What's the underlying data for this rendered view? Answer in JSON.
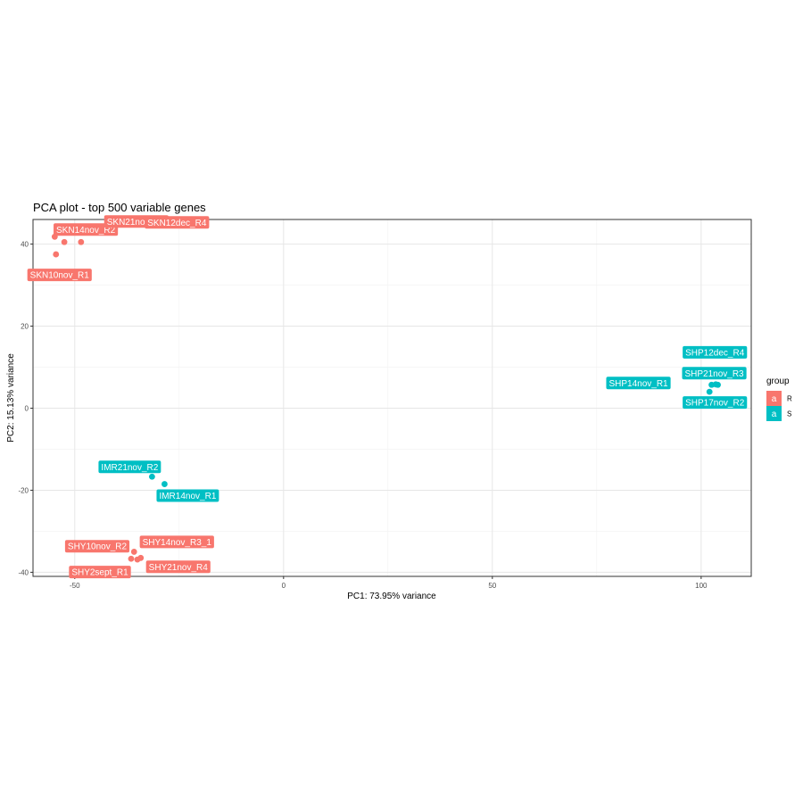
{
  "chart_data": {
    "type": "scatter",
    "title": "PCA plot - top 500 variable genes",
    "xlabel": "PC1: 73.95% variance",
    "ylabel": "PC2: 15.13% variance",
    "xlim": [
      -60,
      112
    ],
    "ylim": [
      -41,
      46
    ],
    "x_ticks": [
      -50,
      0,
      50,
      100
    ],
    "x_tick_labels": [
      "-50",
      "0",
      "50",
      "100"
    ],
    "y_ticks": [
      -40,
      -20,
      0,
      20,
      40
    ],
    "y_tick_labels": [
      "-40",
      "-20",
      "0",
      "20",
      "40"
    ],
    "grid": true,
    "legend": {
      "title": "group",
      "placement": "right",
      "key_glyph": "a",
      "entries": [
        {
          "name": "R",
          "color": "#F8766D"
        },
        {
          "name": "S",
          "color": "#00BFC4"
        }
      ]
    },
    "series": [
      {
        "name": "R",
        "color": "#F8766D",
        "points": [
          {
            "label": "SKN10nov_R1",
            "x": -54.5,
            "y": 37.5
          },
          {
            "label": "SKN14nov_R2",
            "x": -52.5,
            "y": 40.5
          },
          {
            "label": "SKN21nov_R3",
            "x": -48.5,
            "y": 40.5
          },
          {
            "label": "SKN12dec_R4",
            "x": -54.8,
            "y": 41.8
          },
          {
            "label": "SHY10nov_R2",
            "x": -36.5,
            "y": -36.7
          },
          {
            "label": "SHY14nov_R3_1",
            "x": -35.8,
            "y": -35.0
          },
          {
            "label": "SHY2sept_R1",
            "x": -35.0,
            "y": -36.9
          },
          {
            "label": "SHY21nov_R4",
            "x": -34.2,
            "y": -36.5
          }
        ]
      },
      {
        "name": "S",
        "color": "#00BFC4",
        "points": [
          {
            "label": "IMR21nov_R2",
            "x": -31.5,
            "y": -16.7
          },
          {
            "label": "IMR14nov_R1",
            "x": -28.5,
            "y": -18.5
          },
          {
            "label": "SHP14nov_R1",
            "x": 102.5,
            "y": 5.7
          },
          {
            "label": "SHP12dec_R4",
            "x": 103.5,
            "y": 5.8
          },
          {
            "label": "SHP21nov_R3",
            "x": 104.0,
            "y": 5.7
          },
          {
            "label": "SHP17nov_R2",
            "x": 102.0,
            "y": 4.0
          }
        ]
      }
    ]
  }
}
